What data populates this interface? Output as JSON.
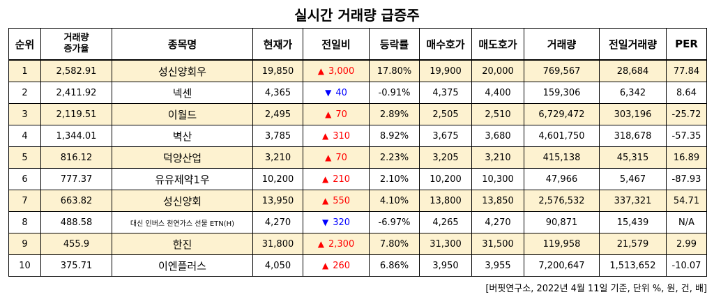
{
  "title": "실시간 거래량 급증주",
  "headers": [
    "순위",
    "거래량\n증가율",
    "종목명",
    "현재가",
    "전일비",
    "등락률",
    "매수호가",
    "매도호가",
    "거래량",
    "전일거래량",
    "PER"
  ],
  "rows": [
    {
      "rank": "1",
      "rate": "2,582.91",
      "name": "성신양회우",
      "price": "19,850",
      "dir": "up",
      "change": "3,000",
      "pct": "17.80%",
      "bid": "19,900",
      "ask": "20,000",
      "volume": "769,567",
      "prev_volume": "28,684",
      "per": "77.84"
    },
    {
      "rank": "2",
      "rate": "2,411.92",
      "name": "넥센",
      "price": "4,365",
      "dir": "down",
      "change": "40",
      "pct": "-0.91%",
      "bid": "4,375",
      "ask": "4,400",
      "volume": "159,306",
      "prev_volume": "6,342",
      "per": "8.64"
    },
    {
      "rank": "3",
      "rate": "2,119.51",
      "name": "이월드",
      "price": "2,495",
      "dir": "up",
      "change": "70",
      "pct": "2.89%",
      "bid": "2,505",
      "ask": "2,510",
      "volume": "6,729,472",
      "prev_volume": "303,196",
      "per": "-25.72"
    },
    {
      "rank": "4",
      "rate": "1,344.01",
      "name": "벽산",
      "price": "3,785",
      "dir": "up",
      "change": "310",
      "pct": "8.92%",
      "bid": "3,675",
      "ask": "3,680",
      "volume": "4,601,750",
      "prev_volume": "318,678",
      "per": "-57.35"
    },
    {
      "rank": "5",
      "rate": "816.12",
      "name": "덕양산업",
      "price": "3,210",
      "dir": "up",
      "change": "70",
      "pct": "2.23%",
      "bid": "3,205",
      "ask": "3,210",
      "volume": "415,138",
      "prev_volume": "45,315",
      "per": "16.89"
    },
    {
      "rank": "6",
      "rate": "777.37",
      "name": "유유제약1우",
      "price": "10,200",
      "dir": "up",
      "change": "210",
      "pct": "2.10%",
      "bid": "10,200",
      "ask": "10,300",
      "volume": "47,966",
      "prev_volume": "5,467",
      "per": "-87.93"
    },
    {
      "rank": "7",
      "rate": "663.82",
      "name": "성신양회",
      "price": "13,950",
      "dir": "up",
      "change": "550",
      "pct": "4.10%",
      "bid": "13,800",
      "ask": "13,850",
      "volume": "2,576,532",
      "prev_volume": "337,321",
      "per": "54.71"
    },
    {
      "rank": "8",
      "rate": "488.58",
      "name": "대신 인버스 천연가스 선물 ETN(H)",
      "price": "4,270",
      "dir": "down",
      "change": "320",
      "pct": "-6.97%",
      "bid": "4,265",
      "ask": "4,270",
      "volume": "90,871",
      "prev_volume": "15,439",
      "per": "N/A"
    },
    {
      "rank": "9",
      "rate": "455.9",
      "name": "한진",
      "price": "31,800",
      "dir": "up",
      "change": "2,300",
      "pct": "7.80%",
      "bid": "31,300",
      "ask": "31,500",
      "volume": "119,958",
      "prev_volume": "21,579",
      "per": "2.99"
    },
    {
      "rank": "10",
      "rate": "375.71",
      "name": "이엔플러스",
      "price": "4,050",
      "dir": "up",
      "change": "260",
      "pct": "6.86%",
      "bid": "3,950",
      "ask": "3,955",
      "volume": "7,200,647",
      "prev_volume": "1,513,652",
      "per": "-10.07"
    }
  ],
  "arrows": {
    "up": "▲",
    "down": "▼"
  },
  "colors": {
    "up": "#ff0000",
    "down": "#0000ff",
    "highlight_row": "#fdf2d0"
  },
  "source": "[버핏연구소, 2022년 4월 11일 기준, 단위 %, 원, 건, 배]"
}
